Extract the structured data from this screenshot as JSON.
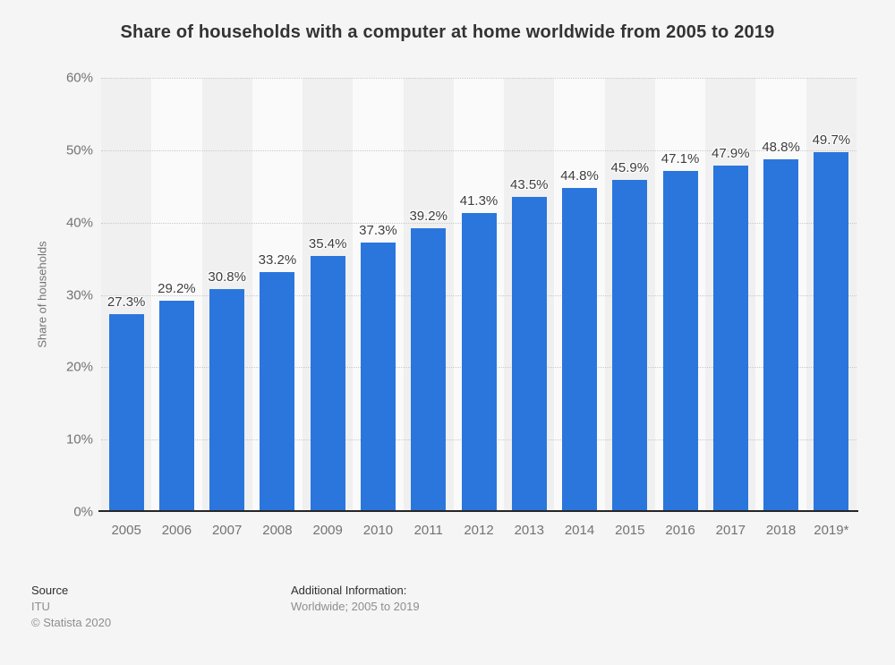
{
  "chart_data": {
    "type": "bar",
    "title": "Share of households with a computer at home worldwide from 2005 to 2019",
    "xlabel": "",
    "ylabel": "Share of households",
    "ylim": [
      0,
      60
    ],
    "grid": "horizontal-dotted",
    "legend": "none",
    "plot_background": "alternating-vertical-stripes",
    "categories": [
      "2005",
      "2006",
      "2007",
      "2008",
      "2009",
      "2010",
      "2011",
      "2012",
      "2013",
      "2014",
      "2015",
      "2016",
      "2017",
      "2018",
      "2019*"
    ],
    "values": [
      27.3,
      29.2,
      30.8,
      33.2,
      35.4,
      37.3,
      39.2,
      41.3,
      43.5,
      44.8,
      45.9,
      47.1,
      47.9,
      48.8,
      49.7
    ],
    "value_labels": [
      "27.3%",
      "29.2%",
      "30.8%",
      "33.2%",
      "35.4%",
      "37.3%",
      "39.2%",
      "41.3%",
      "43.5%",
      "44.8%",
      "45.9%",
      "47.1%",
      "47.9%",
      "48.8%",
      "49.7%"
    ],
    "yticks": [
      {
        "value": 0,
        "label": "0%"
      },
      {
        "value": 10,
        "label": "10%"
      },
      {
        "value": 20,
        "label": "20%"
      },
      {
        "value": 30,
        "label": "30%"
      },
      {
        "value": 40,
        "label": "40%"
      },
      {
        "value": 50,
        "label": "50%"
      },
      {
        "value": 60,
        "label": "60%"
      }
    ]
  },
  "footer": {
    "source_label": "Source",
    "source_value": "ITU",
    "copyright": "© Statista 2020",
    "additional_label": "Additional Information:",
    "additional_value": "Worldwide; 2005 to 2019"
  },
  "colors": {
    "bar": "#2b76dd",
    "canvas_bg": "#f5f5f5",
    "stripe_dark": "#f0f0f0",
    "stripe_light": "#fafafa",
    "grid": "#c9c9c9",
    "axis_line": "#262626",
    "title_text": "#333333",
    "tick_text": "#737373",
    "value_label_text": "#3d3d3d",
    "footer_head_text": "#2f2f2f",
    "footer_sub_text": "#8e8e8e"
  }
}
